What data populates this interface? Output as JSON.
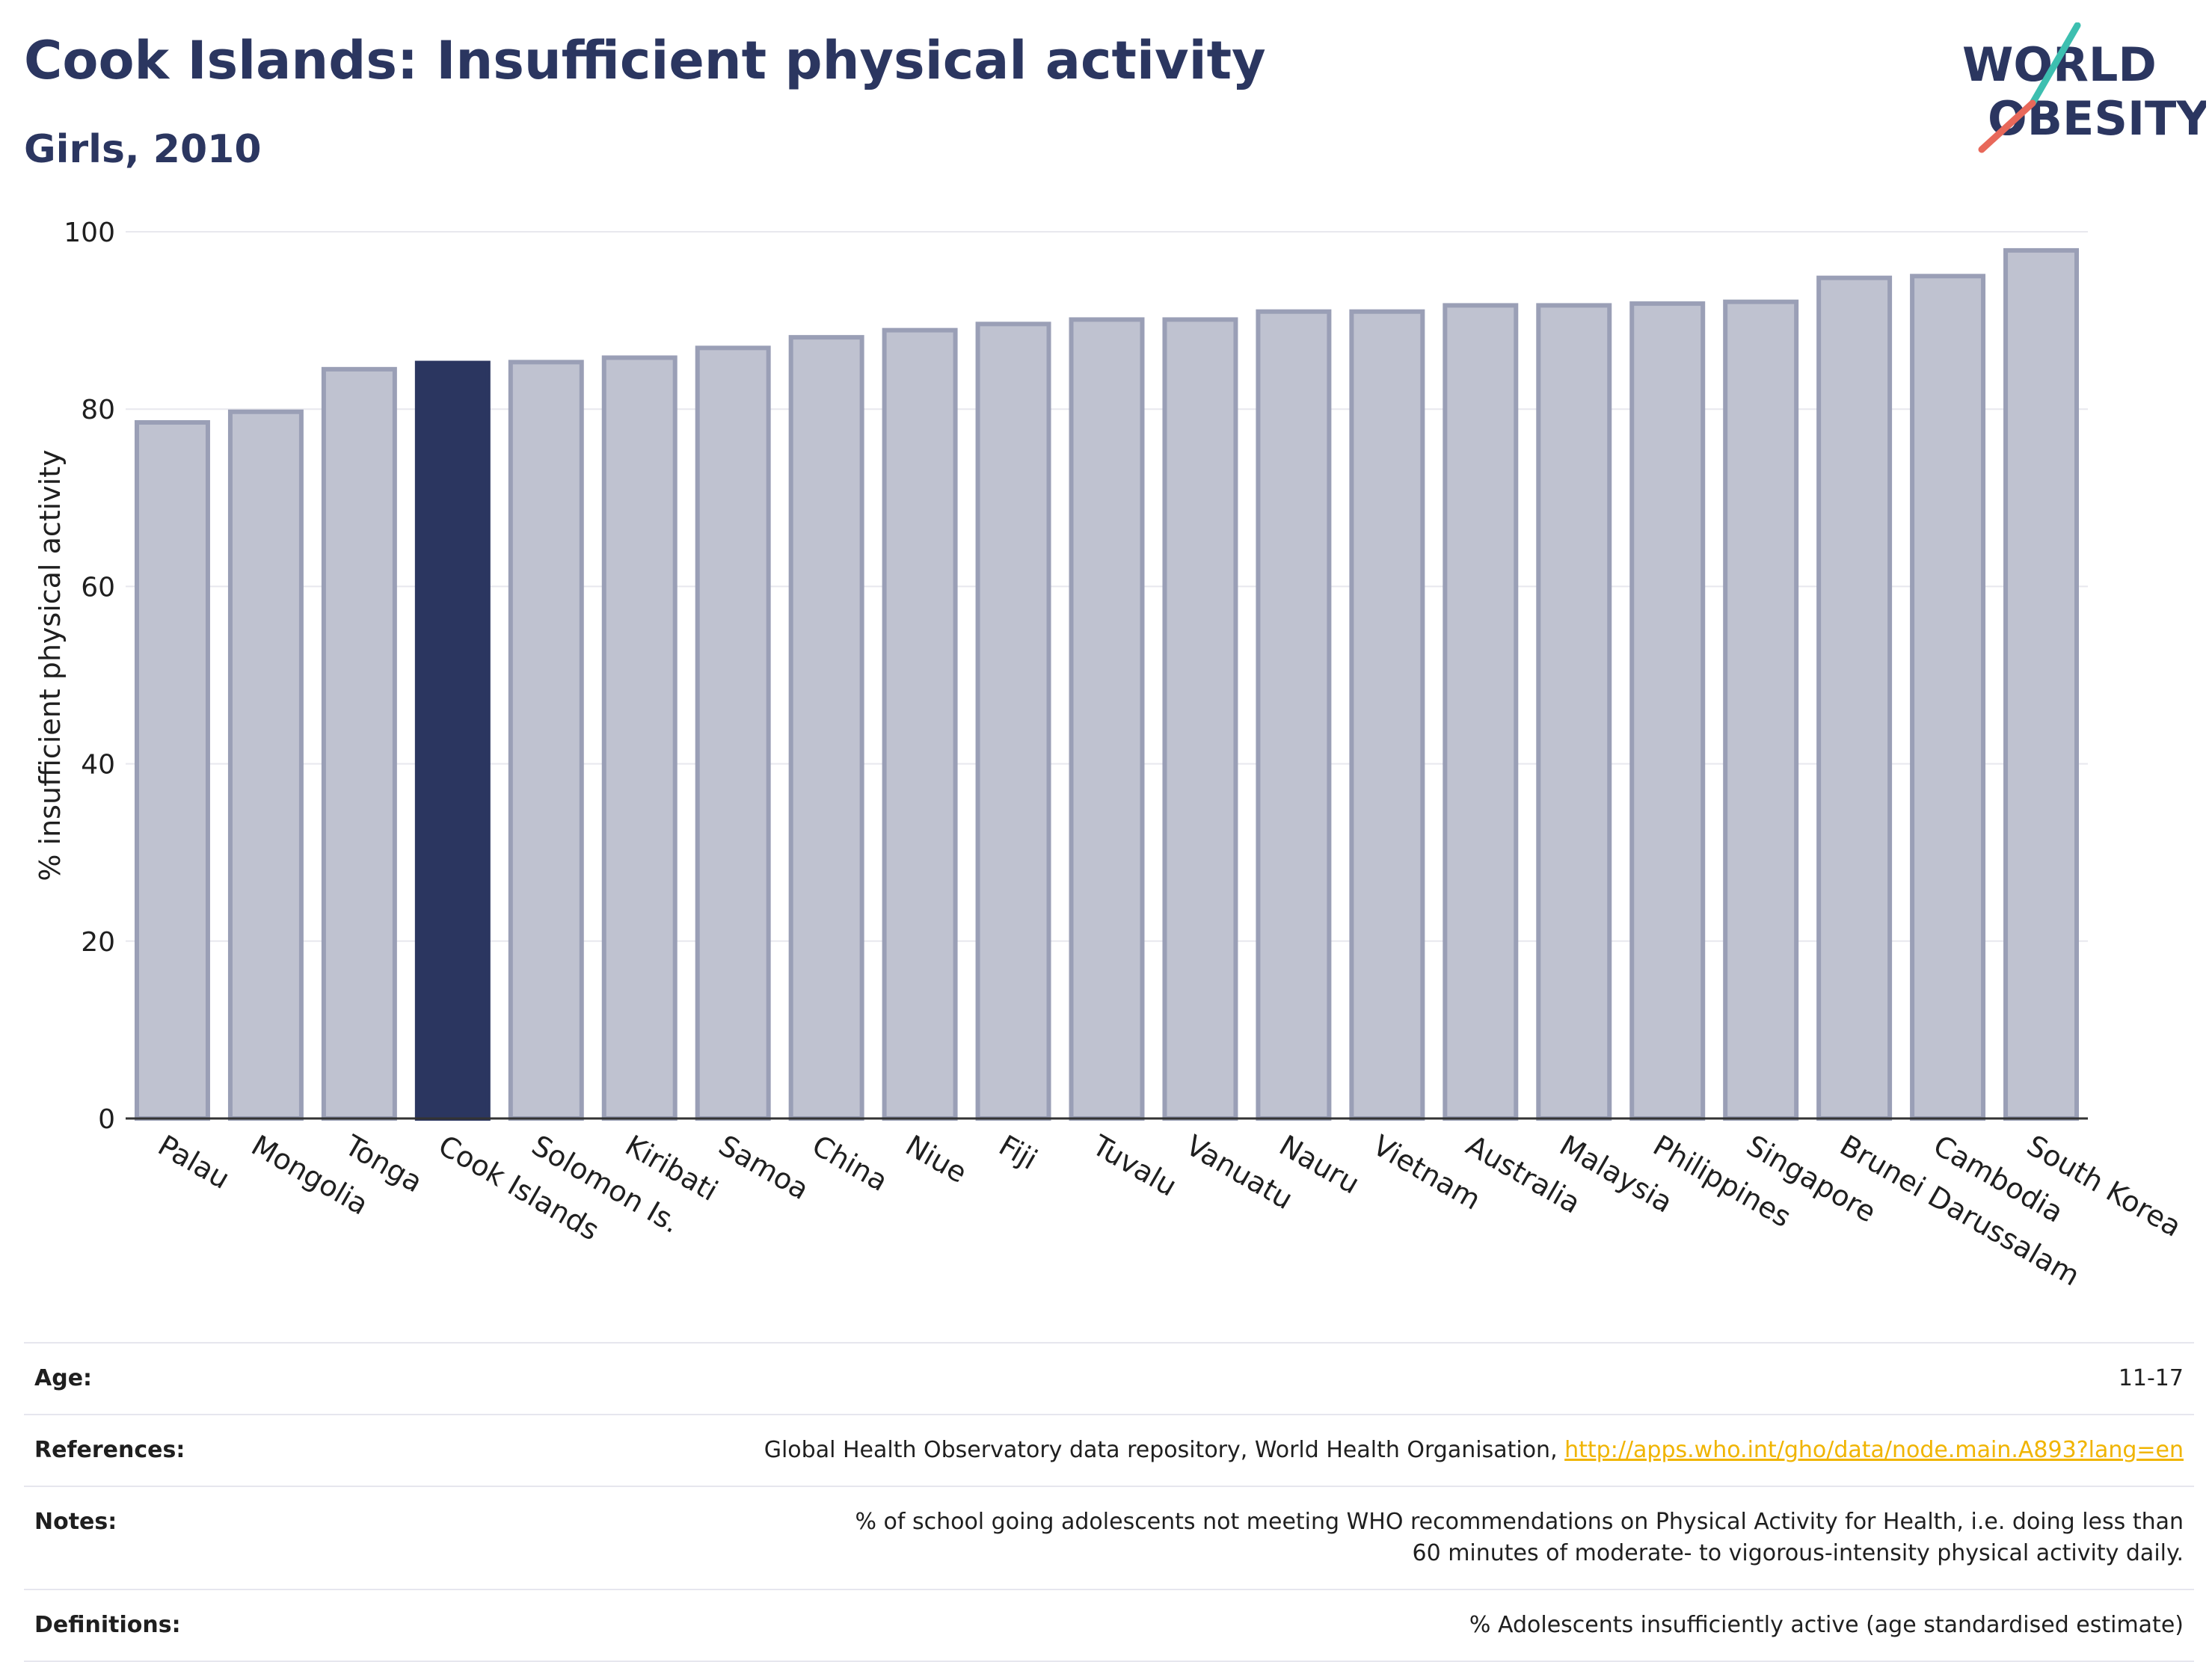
{
  "header": {
    "title": "Cook Islands: Insufficient physical activity",
    "subtitle": "Girls, 2010"
  },
  "logo": {
    "line1": "WORLD",
    "line2": "OBESITY",
    "colors": {
      "text": "#2b3660",
      "accent_teal": "#3dbfb0",
      "accent_red": "#e8685a"
    }
  },
  "colors": {
    "bar": "#bfc2d0",
    "bar_border": "#9a9fb6",
    "highlight": "#2b3660",
    "grid": "#e8e8ee",
    "axis": "#333333"
  },
  "chart_data": {
    "type": "bar",
    "ylabel": "% insufficient physical activity",
    "ylim": [
      0,
      100
    ],
    "yticks": [
      0,
      20,
      40,
      60,
      80,
      100
    ],
    "grid": true,
    "highlight_category": "Cook Islands",
    "categories": [
      "Palau",
      "Mongolia",
      "Tonga",
      "Cook Islands",
      "Solomon Is.",
      "Kiribati",
      "Samoa",
      "China",
      "Niue",
      "Fiji",
      "Tuvalu",
      "Vanuatu",
      "Nauru",
      "Vietnam",
      "Australia",
      "Malaysia",
      "Philippines",
      "Singapore",
      "Brunei Darussalam",
      "Cambodia",
      "South Korea"
    ],
    "values": [
      78.5,
      79.7,
      84.5,
      85.2,
      85.3,
      85.8,
      86.9,
      88.1,
      88.9,
      89.6,
      90.1,
      90.1,
      91.0,
      91.0,
      91.7,
      91.7,
      91.9,
      92.1,
      94.8,
      95.0,
      97.9
    ]
  },
  "info": {
    "rows": [
      {
        "label": "Age:",
        "value": "11-17"
      },
      {
        "label": "References:",
        "value": "Global Health Observatory data repository, World Health Organisation, ",
        "link": "http://apps.who.int/gho/data/node.main.A893?lang=en"
      },
      {
        "label": "Notes:",
        "value": "% of school going adolescents not meeting WHO recommendations on Physical Activity for Health, i.e. doing less than 60 minutes of moderate- to vigorous-intensity physical activity daily."
      },
      {
        "label": "Definitions:",
        "value": "% Adolescents insufficiently active (age standardised estimate)"
      }
    ]
  }
}
